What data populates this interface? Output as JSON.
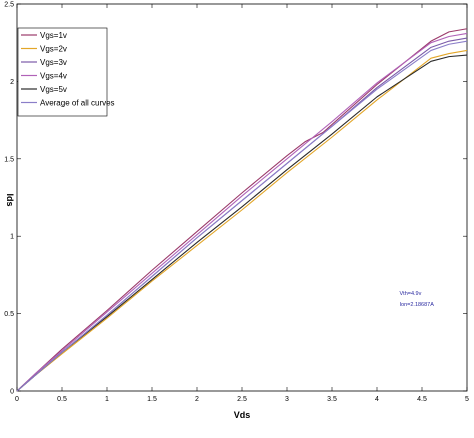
{
  "chart_data": {
    "type": "line",
    "xlabel": "Vds",
    "ylabel": "Ids",
    "xlim": [
      0,
      5
    ],
    "ylim": [
      0,
      2.5
    ],
    "xticks": [
      "0",
      "0.5",
      "1",
      "1.5",
      "2",
      "2.5",
      "3",
      "3.5",
      "4",
      "4.5",
      "5"
    ],
    "yticks": [
      "0",
      "0.5",
      "1",
      "1.5",
      "2",
      "2.5"
    ],
    "grid": false,
    "legend_position": "top-left",
    "series": [
      {
        "name": "Vgs=1v",
        "color": "#9b3a6a",
        "x": [
          0,
          0.2,
          0.5,
          1,
          1.5,
          2,
          2.5,
          3,
          3.2,
          3.4,
          4,
          4.6,
          4.8,
          5
        ],
        "y": [
          0,
          0.11,
          0.27,
          0.52,
          0.78,
          1.03,
          1.28,
          1.52,
          1.61,
          1.67,
          1.98,
          2.26,
          2.32,
          2.34
        ]
      },
      {
        "name": "Vgs=2v",
        "color": "#e3a628",
        "x": [
          0,
          0.2,
          0.5,
          1,
          1.5,
          2,
          2.5,
          3,
          3.5,
          4,
          4.6,
          4.8,
          5
        ],
        "y": [
          0,
          0.1,
          0.24,
          0.47,
          0.71,
          0.94,
          1.17,
          1.41,
          1.64,
          1.88,
          2.15,
          2.18,
          2.2
        ]
      },
      {
        "name": "Vgs=3v",
        "color": "#7a5aa8",
        "x": [
          0,
          0.2,
          0.5,
          1,
          1.5,
          2,
          2.5,
          3,
          3.5,
          4,
          4.6,
          4.8,
          5
        ],
        "y": [
          0,
          0.1,
          0.25,
          0.49,
          0.74,
          0.99,
          1.23,
          1.47,
          1.71,
          1.96,
          2.22,
          2.26,
          2.28
        ]
      },
      {
        "name": "Vgs=4v",
        "color": "#b062b8",
        "x": [
          0,
          0.2,
          0.5,
          1,
          1.5,
          2,
          2.5,
          3,
          3.5,
          4,
          4.6,
          4.8,
          5
        ],
        "y": [
          0,
          0.11,
          0.26,
          0.51,
          0.76,
          1.01,
          1.26,
          1.5,
          1.74,
          1.99,
          2.25,
          2.29,
          2.31
        ]
      },
      {
        "name": "Vgs=5v",
        "color": "#2a2a2a",
        "x": [
          0,
          0.2,
          0.5,
          1,
          1.5,
          2,
          2.5,
          3,
          3.5,
          4,
          4.6,
          4.8,
          5
        ],
        "y": [
          0,
          0.1,
          0.25,
          0.48,
          0.72,
          0.96,
          1.19,
          1.43,
          1.66,
          1.9,
          2.13,
          2.16,
          2.17
        ]
      },
      {
        "name": "Average of all curves",
        "color": "#8a7ec8",
        "x": [
          0,
          0.2,
          0.5,
          1,
          1.5,
          2,
          2.5,
          3,
          3.5,
          4,
          4.6,
          4.8,
          5
        ],
        "y": [
          0,
          0.1,
          0.25,
          0.49,
          0.74,
          0.99,
          1.23,
          1.47,
          1.71,
          1.95,
          2.2,
          2.24,
          2.26
        ]
      }
    ],
    "annotations": [
      {
        "text": "Vth=4.9v",
        "x": 4.25,
        "y": 0.62
      },
      {
        "text": "Ion=2.18687A",
        "x": 4.25,
        "y": 0.55
      }
    ]
  }
}
